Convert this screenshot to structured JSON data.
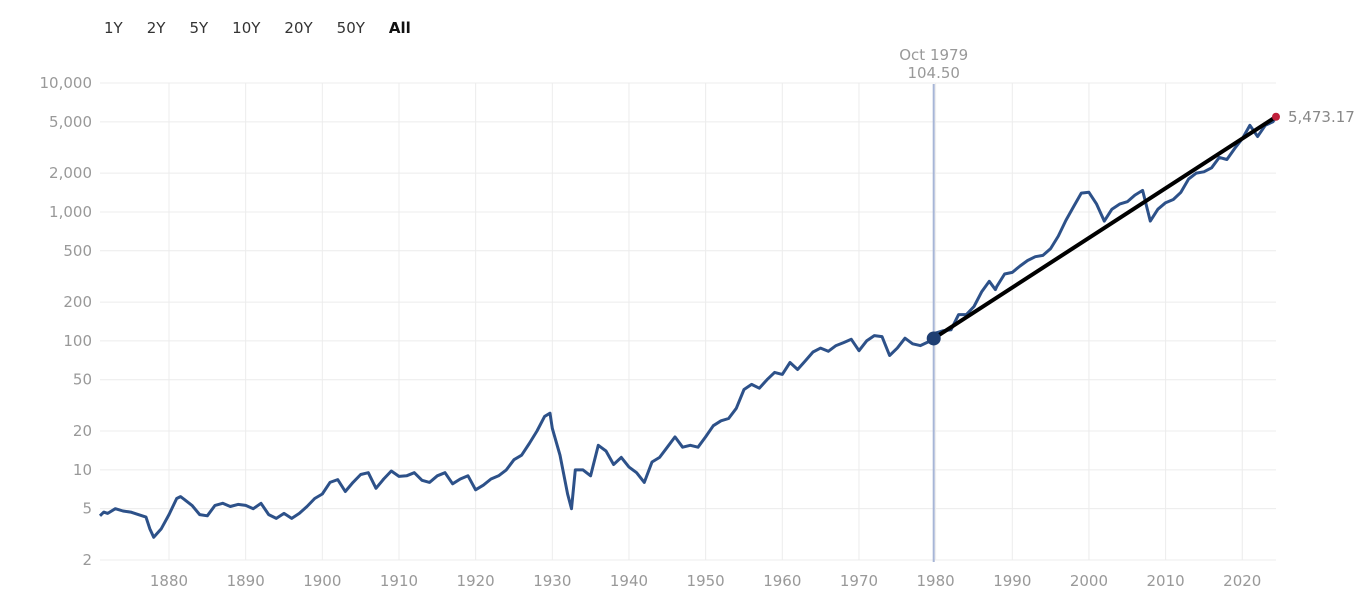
{
  "range_buttons": [
    "1Y",
    "2Y",
    "5Y",
    "10Y",
    "20Y",
    "50Y",
    "All"
  ],
  "active_range": "All",
  "colors": {
    "series": "#2d5189",
    "grid": "#ececec",
    "crosshair": "#a7b5d6",
    "marker": "#1f3f73",
    "trend": "#000000",
    "last_point": "#c0203b"
  },
  "chart_data": {
    "type": "line",
    "yscale": "log",
    "ylim": [
      2,
      10000
    ],
    "xlim": [
      1871,
      2024.4
    ],
    "grid": true,
    "y_ticks": [
      10000,
      5000,
      2000,
      1000,
      500,
      200,
      100,
      50,
      20,
      10,
      5,
      2
    ],
    "y_tick_labels": [
      "10,000",
      "5,000",
      "2,000",
      "1,000",
      "500",
      "200",
      "100",
      "50",
      "20",
      "10",
      "5",
      "2"
    ],
    "x_ticks": [
      1880,
      1890,
      1900,
      1910,
      1920,
      1930,
      1940,
      1950,
      1960,
      1970,
      1980,
      1990,
      2000,
      2010,
      2020
    ],
    "x_tick_labels": [
      "1880",
      "1890",
      "1900",
      "1910",
      "1920",
      "1930",
      "1940",
      "1950",
      "1960",
      "1970",
      "1980",
      "1990",
      "2000",
      "2010",
      "2020"
    ],
    "hover": {
      "x": 1979.75,
      "date": "Oct 1979",
      "value": 104.5,
      "value_label": "104.50"
    },
    "last": {
      "x": 2024.4,
      "value": 5473.17,
      "label": "5,473.17"
    },
    "trend_line": {
      "from": [
        1979.75,
        104.5
      ],
      "to": [
        2024.4,
        5473.17
      ]
    },
    "series": [
      {
        "x": [
          1871,
          1871.5,
          1872,
          1873,
          1874,
          1875,
          1876,
          1877,
          1877.5,
          1878,
          1879,
          1880,
          1881,
          1881.5,
          1882,
          1883,
          1884,
          1885,
          1886,
          1887,
          1888,
          1889,
          1890,
          1891,
          1892,
          1893,
          1894,
          1895,
          1896,
          1897,
          1898,
          1899,
          1900,
          1901,
          1902,
          1903,
          1904,
          1905,
          1906,
          1907,
          1908,
          1909,
          1910,
          1911,
          1912,
          1913,
          1914,
          1915,
          1916,
          1917,
          1918,
          1919,
          1920,
          1921,
          1922,
          1923,
          1924,
          1925,
          1926,
          1927,
          1928,
          1929,
          1929.7,
          1930,
          1931,
          1932,
          1932.5,
          1933,
          1934,
          1935,
          1936,
          1937,
          1938,
          1939,
          1940,
          1941,
          1942,
          1943,
          1944,
          1945,
          1946,
          1947,
          1948,
          1949,
          1950,
          1951,
          1952,
          1953,
          1954,
          1955,
          1956,
          1957,
          1958,
          1959,
          1960,
          1961,
          1962,
          1963,
          1964,
          1965,
          1966,
          1967,
          1968,
          1969,
          1970,
          1971,
          1972,
          1973,
          1974,
          1975,
          1976,
          1977,
          1978,
          1979,
          1979.75,
          1980,
          1981,
          1982,
          1983,
          1984,
          1985,
          1986,
          1987,
          1987.8,
          1988,
          1989,
          1990,
          1991,
          1992,
          1993,
          1994,
          1995,
          1996,
          1997,
          1998,
          1999,
          2000,
          2001,
          2002,
          2003,
          2004,
          2005,
          2006,
          2007,
          2008,
          2009,
          2010,
          2011,
          2012,
          2013,
          2014,
          2015,
          2016,
          2017,
          2018,
          2019,
          2020,
          2021,
          2022,
          2023,
          2024,
          2024.4
        ],
        "values": [
          4.4,
          4.7,
          4.6,
          5.0,
          4.8,
          4.7,
          4.5,
          4.3,
          3.5,
          3.0,
          3.5,
          4.5,
          6.0,
          6.2,
          5.9,
          5.3,
          4.5,
          4.4,
          5.3,
          5.5,
          5.2,
          5.4,
          5.3,
          5.0,
          5.5,
          4.5,
          4.2,
          4.6,
          4.2,
          4.6,
          5.2,
          6.0,
          6.5,
          8.0,
          8.4,
          6.8,
          8.0,
          9.2,
          9.5,
          7.2,
          8.5,
          9.8,
          8.9,
          9.0,
          9.5,
          8.3,
          8.0,
          9.0,
          9.5,
          7.8,
          8.5,
          9.0,
          7.0,
          7.6,
          8.5,
          9.0,
          10.0,
          12.0,
          13.0,
          16.0,
          20.0,
          26.0,
          27.5,
          21.0,
          13.0,
          6.5,
          5.0,
          10.0,
          10.0,
          9.0,
          15.5,
          14.0,
          11.0,
          12.5,
          10.5,
          9.5,
          8.0,
          11.5,
          12.5,
          15.0,
          18.0,
          15.0,
          15.5,
          15.0,
          18.0,
          22.0,
          24.0,
          25.0,
          30.0,
          42.0,
          46.0,
          43.0,
          50.0,
          57.0,
          55.0,
          68.0,
          60.0,
          70.0,
          82.0,
          88.0,
          83.0,
          92.0,
          97.0,
          103.0,
          84.0,
          100.0,
          110.0,
          108.0,
          77.0,
          88.0,
          105.0,
          95.0,
          92.0,
          98.0,
          104.5,
          115.0,
          120.0,
          122.0,
          160.0,
          160.0,
          185.0,
          240.0,
          290.0,
          250.0,
          265.0,
          330.0,
          340.0,
          380.0,
          420.0,
          450.0,
          460.0,
          520.0,
          650.0,
          860.0,
          1100.0,
          1400.0,
          1420.0,
          1150.0,
          850.0,
          1050.0,
          1150.0,
          1200.0,
          1350.0,
          1470.0,
          850.0,
          1050.0,
          1180.0,
          1250.0,
          1420.0,
          1800.0,
          2000.0,
          2050.0,
          2200.0,
          2650.0,
          2550.0,
          3100.0,
          3700.0,
          4700.0,
          3850.0,
          4700.0,
          5000.0,
          5473.17
        ]
      }
    ]
  }
}
